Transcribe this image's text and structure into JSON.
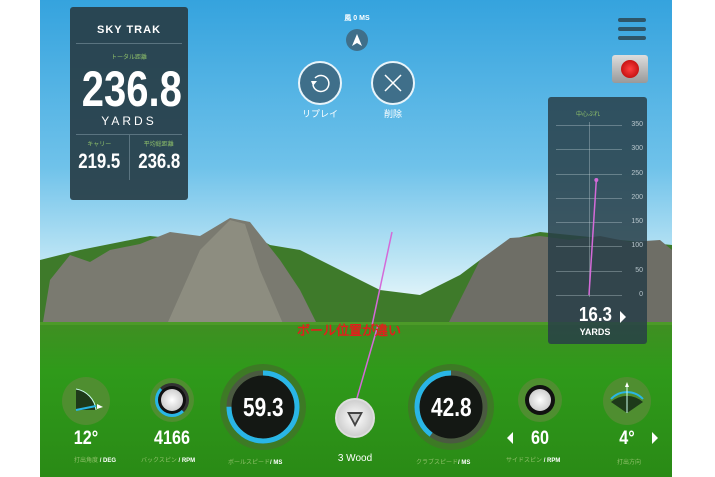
{
  "colors": {
    "panel": "#283e48",
    "accent": "#29b6e6",
    "warning": "#e0201c",
    "shot_line": "#d46ad8",
    "label_green": "#8fc06a"
  },
  "wind": {
    "label": "風 0 MS",
    "icon": "wind-arrow-icon"
  },
  "actions": {
    "replay": "リプレイ",
    "delete": "削除"
  },
  "stats": {
    "logo": "SKY TRAK",
    "total_label": "トータル距離",
    "total": "236.8",
    "unit": "YARDS",
    "carry_label": "キャリー",
    "carry": "219.5",
    "avg_label": "平均総距離",
    "avg": "236.8"
  },
  "dispersion": {
    "title": "中心ぶれ",
    "ticks": [
      "350",
      "300",
      "250",
      "200",
      "150",
      "100",
      "50",
      "0"
    ],
    "value": "16.3",
    "unit": "YARDS",
    "shot": {
      "offline": 16.3,
      "distance": 236.8
    }
  },
  "warning": "ボール位置が違い",
  "metrics": {
    "launch": {
      "value": "12°",
      "label": "打出角度",
      "unit": "/ DEG"
    },
    "backspin": {
      "value": "4166",
      "label": "バックスピン",
      "unit": "/ RPM"
    },
    "ball_speed": {
      "value": "59.3",
      "label": "ボールスピード",
      "unit": "/ MS",
      "fill": 0.75
    },
    "club": {
      "value": "3 Wood"
    },
    "club_speed": {
      "value": "42.8",
      "label": "クラブスピード",
      "unit": "/ MS",
      "fill": 0.4
    },
    "sidespin": {
      "value": "60",
      "label": "サイドスピン",
      "unit": "/ RPM"
    },
    "direction": {
      "value": "4°",
      "label": "打出方向"
    }
  }
}
